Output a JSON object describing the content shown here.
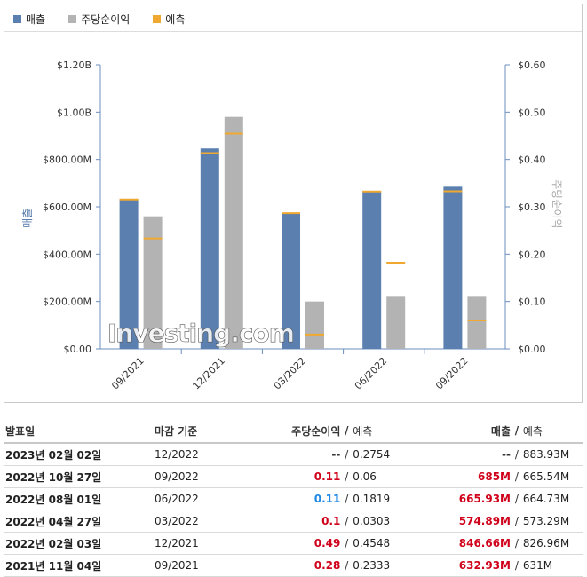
{
  "legend": {
    "revenue_label": "매출",
    "eps_label": "주당순이익",
    "forecast_label": "예측"
  },
  "colors": {
    "revenue": "#5b7fae",
    "eps": "#b3b3b3",
    "forecast": "#f0a830"
  },
  "watermark": "Investing.com",
  "chart_data": {
    "type": "bar",
    "categories": [
      "09/2021",
      "12/2021",
      "03/2022",
      "06/2022",
      "09/2022"
    ],
    "ylabel": "매출",
    "y2label": "주당순이익",
    "ylim": [
      0,
      1200000000
    ],
    "y2lim": [
      0,
      0.6
    ],
    "yticks": [
      "$0.00",
      "$200.00M",
      "$400.00M",
      "$600.00M",
      "$800.00M",
      "$1.00B",
      "$1.20B"
    ],
    "y2ticks": [
      "$0.00",
      "$0.10",
      "$0.20",
      "$0.30",
      "$0.40",
      "$0.50",
      "$0.60"
    ],
    "series": [
      {
        "name": "매출",
        "axis": "left",
        "values": [
          632930000,
          846660000,
          574890000,
          665930000,
          685000000
        ],
        "forecast": [
          631000000,
          826960000,
          573290000,
          664730000,
          665540000
        ]
      },
      {
        "name": "주당순이익",
        "axis": "right",
        "values": [
          0.28,
          0.49,
          0.1,
          0.11,
          0.11
        ],
        "forecast": [
          0.2333,
          0.4548,
          0.0303,
          0.1819,
          0.06
        ]
      }
    ],
    "grid": false,
    "legend_position": "top-left"
  },
  "table": {
    "headers": {
      "date": "발표일",
      "period": "마감 기준",
      "eps": "주당순이익",
      "eps_forecast": "예측",
      "revenue": "매출",
      "revenue_forecast": "예측",
      "slash": "/"
    },
    "rows": [
      {
        "date": "2023년 02월 02일",
        "period": "12/2022",
        "eps": "--",
        "eps_forecast": "0.2754",
        "revenue": "--",
        "revenue_forecast": "883.93M",
        "eps_color": "dark",
        "rev_color": "dark"
      },
      {
        "date": "2022년 10월 27일",
        "period": "09/2022",
        "eps": "0.11",
        "eps_forecast": "0.06",
        "revenue": "685M",
        "revenue_forecast": "665.54M",
        "eps_color": "red",
        "rev_color": "red"
      },
      {
        "date": "2022년 08월 01일",
        "period": "06/2022",
        "eps": "0.11",
        "eps_forecast": "0.1819",
        "revenue": "665.93M",
        "revenue_forecast": "664.73M",
        "eps_color": "blue",
        "rev_color": "red"
      },
      {
        "date": "2022년 04월 27일",
        "period": "03/2022",
        "eps": "0.1",
        "eps_forecast": "0.0303",
        "revenue": "574.89M",
        "revenue_forecast": "573.29M",
        "eps_color": "red",
        "rev_color": "red"
      },
      {
        "date": "2022년 02월 03일",
        "period": "12/2021",
        "eps": "0.49",
        "eps_forecast": "0.4548",
        "revenue": "846.66M",
        "revenue_forecast": "826.96M",
        "eps_color": "red",
        "rev_color": "red"
      },
      {
        "date": "2021년 11월 04일",
        "period": "09/2021",
        "eps": "0.28",
        "eps_forecast": "0.2333",
        "revenue": "632.93M",
        "revenue_forecast": "631M",
        "eps_color": "red",
        "rev_color": "red"
      }
    ]
  }
}
